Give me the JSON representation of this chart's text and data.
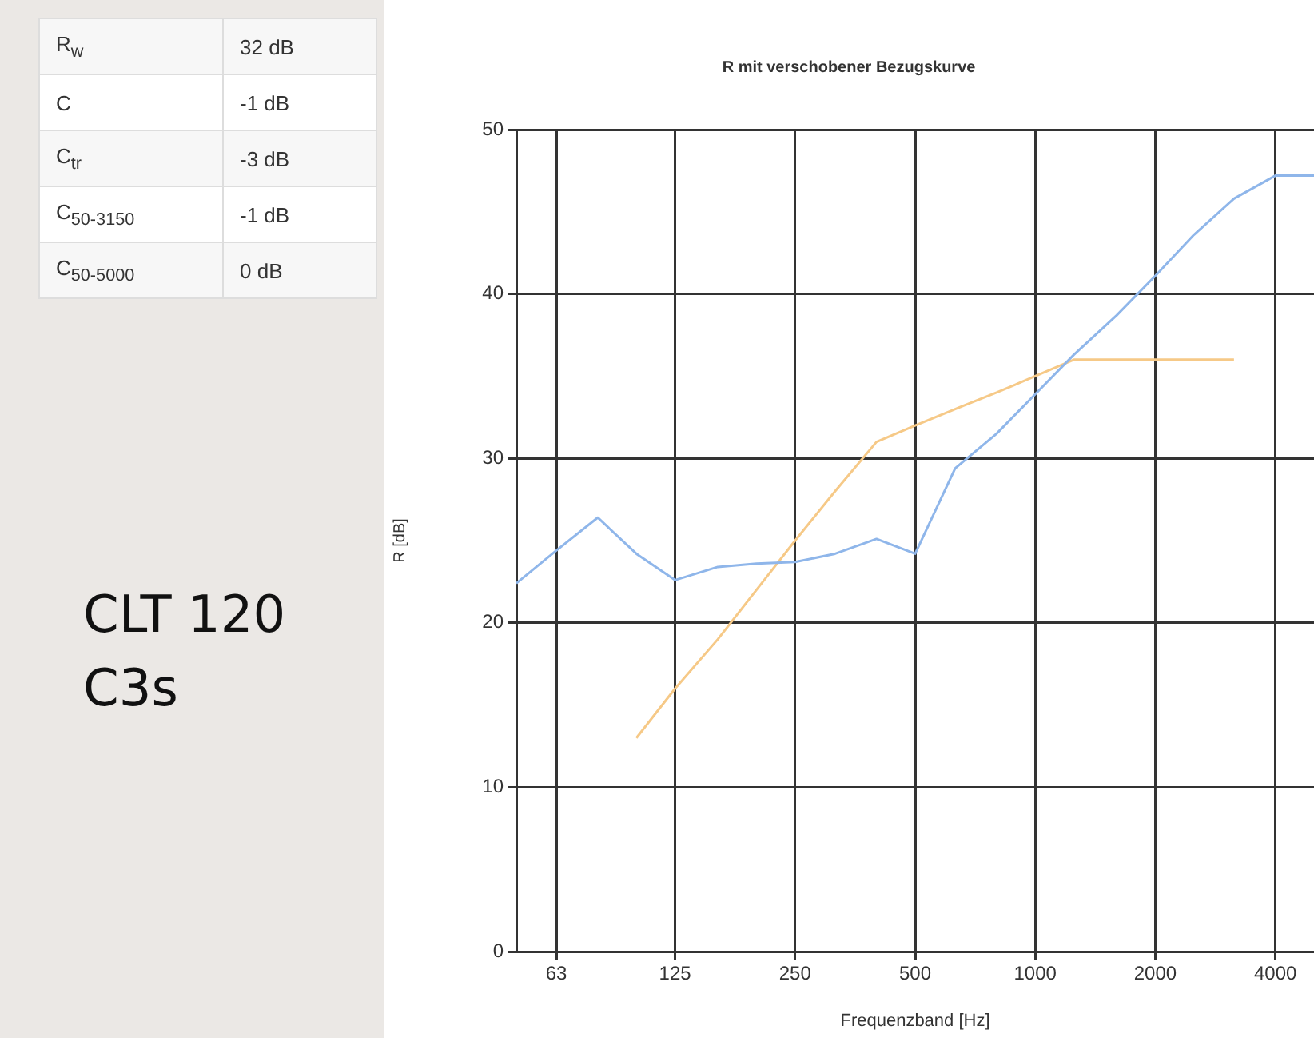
{
  "chart_data": [
    {
      "type": "other",
      "annotations": [
        "R$_{w}$",
        "32 dB",
        "C",
        "-1 dB",
        "C$_{tr}$",
        "-3 dB",
        "C$_{50-3150}$",
        "-1 dB",
        "C$_{50-5000}$",
        "0 dB",
        "CLT 120",
        "C3s"
      ]
    },
    {
      "type": "line",
      "title": "R mit verschobener Bezugskurve",
      "xlabel": "Frequenzband [Hz]",
      "ylabel": "R [dB]",
      "log": "x",
      "grid": true,
      "legend": false,
      "marker": "none",
      "line_style": "solid",
      "xlim": [
        50,
        5000
      ],
      "ylim": [
        0,
        50
      ],
      "xticks": [
        63,
        125,
        250,
        500,
        1000,
        2000,
        4000
      ],
      "yticks": [
        0,
        10,
        20,
        30,
        40,
        50
      ],
      "series": [
        {
          "color": "#8fb6ea",
          "x": [
            50,
            63,
            80,
            100,
            125,
            160,
            200,
            250,
            315,
            400,
            500,
            630,
            800,
            1000,
            1250,
            1600,
            2000,
            2500,
            3150,
            4000,
            5000
          ],
          "values": [
            22.4,
            24.4,
            26.4,
            24.2,
            22.6,
            23.4,
            23.6,
            23.7,
            24.2,
            25.1,
            24.2,
            29.4,
            31.5,
            33.9,
            36.3,
            38.7,
            41.1,
            43.6,
            45.8,
            47.2,
            47.2
          ]
        },
        {
          "color": "#f6c987",
          "x": [
            100,
            125,
            160,
            200,
            250,
            315,
            400,
            500,
            630,
            800,
            1000,
            1250,
            1600,
            2000,
            2500,
            3150
          ],
          "values": [
            13,
            16,
            19,
            22,
            25,
            28,
            31,
            32,
            33,
            34,
            35,
            36,
            36,
            36,
            36,
            36
          ]
        }
      ]
    }
  ]
}
